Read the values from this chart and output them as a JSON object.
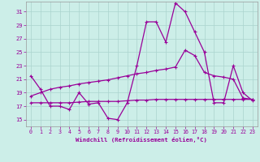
{
  "xlabel": "Windchill (Refroidissement éolien,°C)",
  "bg_color": "#cceee8",
  "grid_color": "#aad4ce",
  "line_color": "#990099",
  "x_ticks": [
    0,
    1,
    2,
    3,
    4,
    5,
    6,
    7,
    8,
    9,
    10,
    11,
    12,
    13,
    14,
    15,
    16,
    17,
    18,
    19,
    20,
    21,
    22,
    23
  ],
  "y_ticks": [
    15,
    17,
    19,
    21,
    23,
    25,
    27,
    29,
    31
  ],
  "ylim": [
    14.0,
    32.5
  ],
  "xlim": [
    -0.5,
    23.5
  ],
  "line1_y": [
    21.5,
    19.5,
    17.0,
    17.0,
    16.5,
    19.0,
    17.3,
    17.5,
    15.2,
    15.0,
    17.5,
    23.0,
    29.5,
    29.5,
    26.5,
    32.3,
    31.0,
    28.0,
    25.0,
    17.5,
    17.5,
    23.0,
    19.0,
    17.8
  ],
  "line2_y": [
    18.5,
    19.0,
    19.5,
    19.8,
    20.0,
    20.3,
    20.5,
    20.7,
    20.9,
    21.2,
    21.5,
    21.8,
    22.0,
    22.3,
    22.5,
    22.8,
    25.3,
    24.5,
    22.0,
    21.5,
    21.3,
    21.0,
    18.2,
    18.0
  ],
  "line3_y": [
    17.5,
    17.5,
    17.5,
    17.5,
    17.5,
    17.6,
    17.7,
    17.7,
    17.7,
    17.7,
    17.8,
    17.9,
    17.9,
    18.0,
    18.0,
    18.0,
    18.0,
    18.0,
    18.0,
    18.0,
    18.0,
    18.0,
    18.0,
    18.0
  ]
}
